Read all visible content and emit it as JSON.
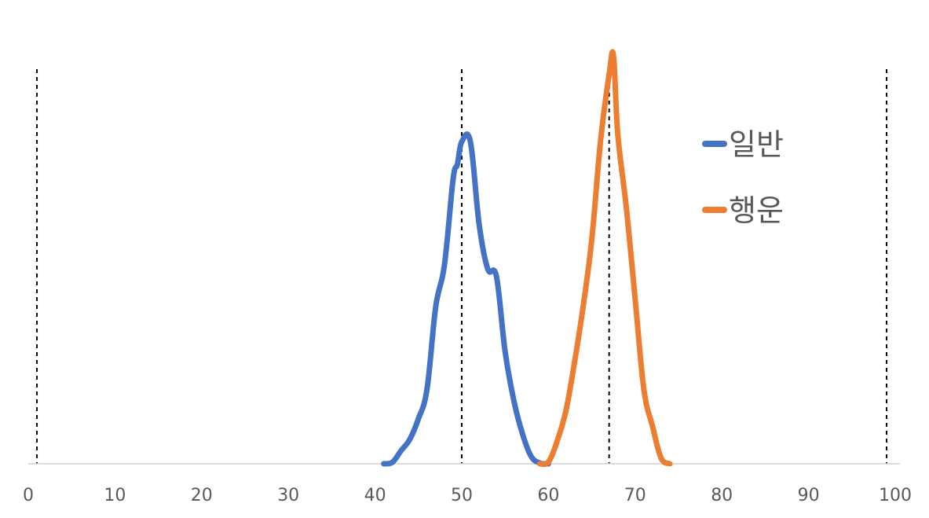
{
  "chart_data": {
    "type": "line",
    "title": "",
    "xlabel": "",
    "ylabel": "",
    "xlim": [
      0,
      100
    ],
    "xticks": [
      "0",
      "10",
      "20",
      "30",
      "40",
      "50",
      "60",
      "70",
      "80",
      "90",
      "100"
    ],
    "y_axis_shown": false,
    "grid": false,
    "legend_position": "right",
    "reference_lines_x": [
      1,
      50,
      67,
      99
    ],
    "series": [
      {
        "name": "일반",
        "color": "#4472C4",
        "points": [
          [
            41,
            0
          ],
          [
            42,
            0.4
          ],
          [
            43,
            3.5
          ],
          [
            44,
            6.5
          ],
          [
            45,
            12
          ],
          [
            46,
            20
          ],
          [
            47,
            42
          ],
          [
            48,
            53
          ],
          [
            49,
            76
          ],
          [
            49.5,
            80
          ],
          [
            50,
            86
          ],
          [
            51,
            86
          ],
          [
            52,
            64
          ],
          [
            53,
            52
          ],
          [
            54,
            50
          ],
          [
            55,
            30
          ],
          [
            56,
            17
          ],
          [
            57,
            8
          ],
          [
            58,
            2
          ],
          [
            59,
            0.2
          ],
          [
            60,
            0
          ]
        ]
      },
      {
        "name": "행운",
        "color": "#ED7D31",
        "points": [
          [
            59,
            0
          ],
          [
            60,
            0.5
          ],
          [
            61,
            6
          ],
          [
            62,
            14
          ],
          [
            63,
            27
          ],
          [
            64,
            42
          ],
          [
            65,
            60
          ],
          [
            66,
            86
          ],
          [
            67,
            104
          ],
          [
            67.5,
            109
          ],
          [
            68,
            88
          ],
          [
            69,
            68
          ],
          [
            70,
            44
          ],
          [
            71,
            20
          ],
          [
            72,
            10
          ],
          [
            73,
            1.5
          ],
          [
            74,
            0
          ]
        ]
      }
    ]
  }
}
